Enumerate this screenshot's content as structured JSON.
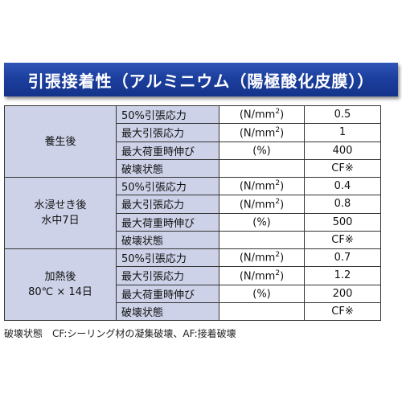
{
  "title": "引張接着性（アルミニウム（陽極酸化皮膜））",
  "groups": [
    {
      "condition": [
        "養生後"
      ],
      "rows": [
        {
          "property": "50%引張応力",
          "unit_main": "(N/mm",
          "unit_sup": "2",
          "unit_tail": ")",
          "value": "0.5"
        },
        {
          "property": "最大引張応力",
          "unit_main": "(N/mm",
          "unit_sup": "2",
          "unit_tail": ")",
          "value": "1"
        },
        {
          "property": "最大荷重時伸び",
          "unit_main": "(%)",
          "unit_sup": "",
          "unit_tail": "",
          "value": "400"
        },
        {
          "property": "破壊状態",
          "unit_main": "",
          "unit_sup": "",
          "unit_tail": "",
          "value": "CF※"
        }
      ]
    },
    {
      "condition": [
        "水浸せき後",
        "水中7日"
      ],
      "rows": [
        {
          "property": "50%引張応力",
          "unit_main": "(N/mm",
          "unit_sup": "2",
          "unit_tail": ")",
          "value": "0.4"
        },
        {
          "property": "最大引張応力",
          "unit_main": "(N/mm",
          "unit_sup": "2",
          "unit_tail": ")",
          "value": "0.8"
        },
        {
          "property": "最大荷重時伸び",
          "unit_main": "(%)",
          "unit_sup": "",
          "unit_tail": "",
          "value": "500"
        },
        {
          "property": "破壊状態",
          "unit_main": "",
          "unit_sup": "",
          "unit_tail": "",
          "value": "CF※"
        }
      ]
    },
    {
      "condition": [
        "加熱後",
        "80℃ × 14日"
      ],
      "rows": [
        {
          "property": "50%引張応力",
          "unit_main": "(N/mm",
          "unit_sup": "2",
          "unit_tail": ")",
          "value": "0.7"
        },
        {
          "property": "最大引張応力",
          "unit_main": "(N/mm",
          "unit_sup": "2",
          "unit_tail": ")",
          "value": "1.2"
        },
        {
          "property": "最大荷重時伸び",
          "unit_main": "(%)",
          "unit_sup": "",
          "unit_tail": "",
          "value": "200"
        },
        {
          "property": "破壊状態",
          "unit_main": "",
          "unit_sup": "",
          "unit_tail": "",
          "value": "CF※"
        }
      ]
    }
  ],
  "footnote": "破壊状態　CF:シーリング材の凝集破壊、AF:接着破壊"
}
